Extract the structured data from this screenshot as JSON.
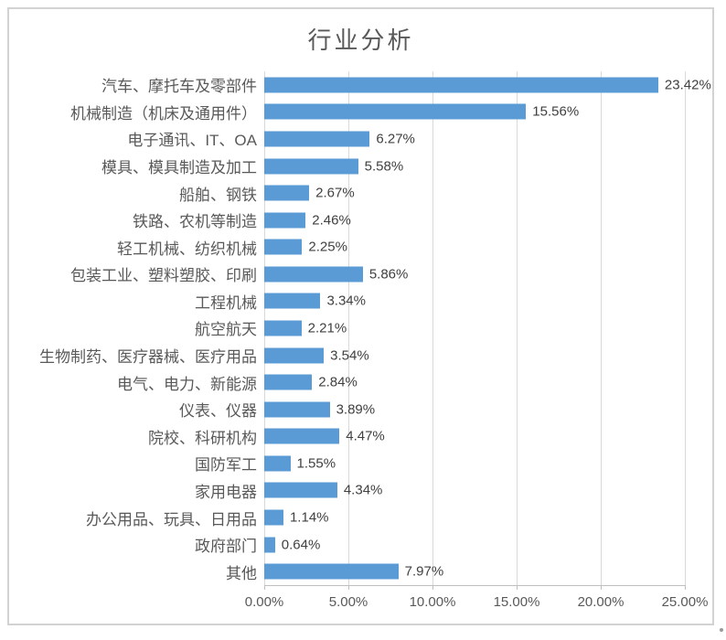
{
  "chart": {
    "bar_color": "#5b9bd5",
    "gridline_color": "#d9d9d9",
    "axis_line_color": "#bfbfbf",
    "title_color": "#595959",
    "frame_border_color": "#d2d2d2"
  },
  "chart_data": {
    "type": "bar",
    "orientation": "horizontal",
    "title": "行业分析",
    "categories": [
      "汽车、摩托车及零部件",
      "机械制造（机床及通用件）",
      "电子通讯、IT、OA",
      "模具、模具制造及加工",
      "船舶、钢铁",
      "铁路、农机等制造",
      "轻工机械、纺织机械",
      "包装工业、塑料塑胶、印刷",
      "工程机械",
      "航空航天",
      "生物制药、医疗器械、医疗用品",
      "电气、电力、新能源",
      "仪表、仪器",
      "院校、科研机构",
      "国防军工",
      "家用电器",
      "办公用品、玩具、日用品",
      "政府部门",
      "其他"
    ],
    "values": [
      23.42,
      15.56,
      6.27,
      5.58,
      2.67,
      2.46,
      2.25,
      5.86,
      3.34,
      2.21,
      3.54,
      2.84,
      3.89,
      4.47,
      1.55,
      4.34,
      1.14,
      0.64,
      7.97
    ],
    "data_labels": [
      "23.42%",
      "15.56%",
      "6.27%",
      "5.58%",
      "2.67%",
      "2.46%",
      "2.25%",
      "5.86%",
      "3.34%",
      "2.21%",
      "3.54%",
      "2.84%",
      "3.89%",
      "4.47%",
      "1.55%",
      "4.34%",
      "1.14%",
      "0.64%",
      "7.97%"
    ],
    "x_ticks": [
      "0.00%",
      "5.00%",
      "10.00%",
      "15.00%",
      "20.00%",
      "25.00%"
    ],
    "xlim": [
      0,
      25
    ],
    "grid": true,
    "legend": "none",
    "bar_color": "#5b9bd5"
  }
}
